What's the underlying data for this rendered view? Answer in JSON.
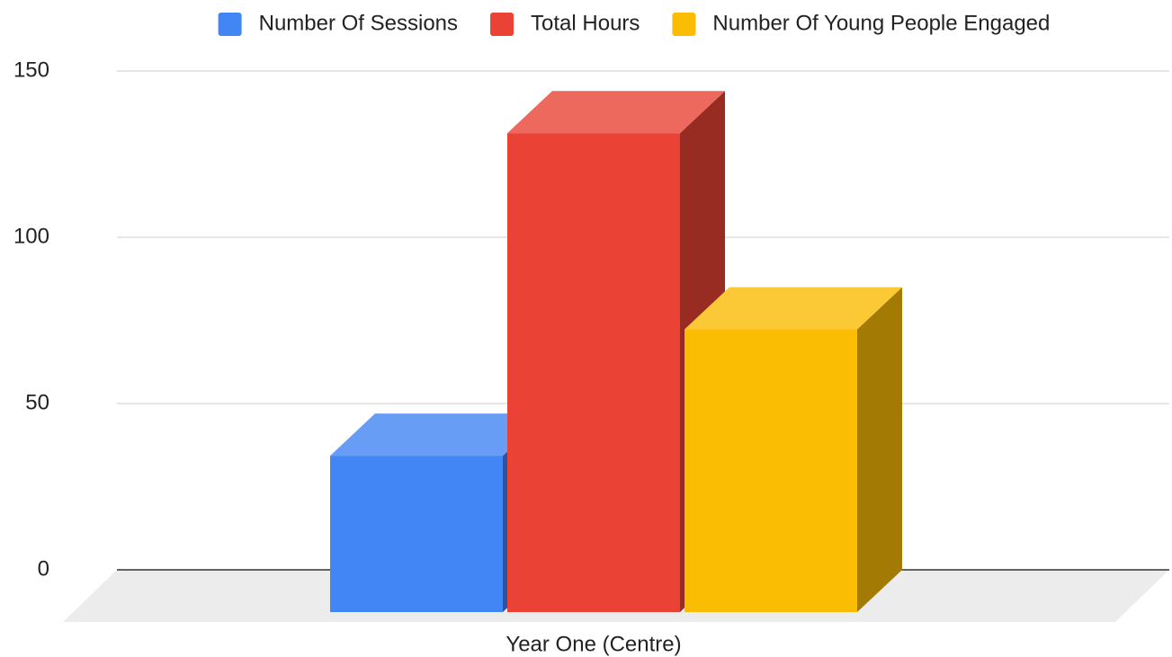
{
  "chart_data": {
    "type": "bar",
    "three_d": true,
    "categories": [
      "Year One (Centre)"
    ],
    "series": [
      {
        "name": "Number Of Sessions",
        "color": "#4285f4",
        "values": [
          47
        ]
      },
      {
        "name": "Total Hours",
        "color": "#ea4335",
        "values": [
          144
        ]
      },
      {
        "name": "Number Of Young People Engaged",
        "color": "#fbbc04",
        "values": [
          85
        ]
      }
    ],
    "ylim": [
      0,
      150
    ],
    "yticks": [
      0,
      50,
      100,
      150
    ],
    "grid": true,
    "legend": "top"
  }
}
